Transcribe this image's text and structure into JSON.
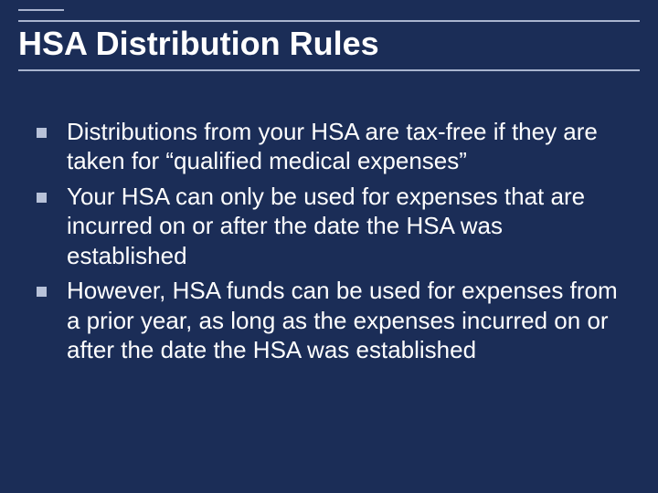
{
  "slide": {
    "title": "HSA Distribution Rules",
    "bullets": [
      "Distributions from your HSA are tax-free if they are taken for “qualified medical expenses”",
      "Your HSA can only be used for expenses that are incurred on or after the date the HSA was established",
      "However, HSA funds can be used for expenses from a prior year, as long as the expenses incurred on or after the date the HSA was established"
    ],
    "colors": {
      "background": "#1b2d57",
      "title_text": "#ffffff",
      "body_text": "#ffffff",
      "bullet_square": "#b8c2d9",
      "rule_line": "#a9b4cf"
    },
    "typography": {
      "title_fontsize": 36,
      "title_weight": "bold",
      "body_fontsize": 26,
      "font_family": "Arial"
    }
  }
}
